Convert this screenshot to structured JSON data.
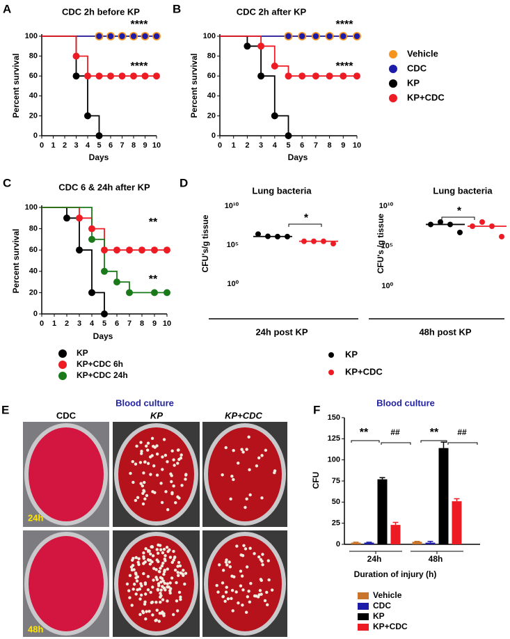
{
  "photos": {
    "panel": "E",
    "title": "Blood culture",
    "columns": [
      "CDC",
      "KP",
      "KP+CDC"
    ],
    "rows": [
      "24h",
      "48h"
    ]
  },
  "chart_data": [
    {
      "type": "step",
      "panel": "A",
      "title": "CDC 2h before KP",
      "xlabel": "Days",
      "ylabel": "Percent survival",
      "xlim": [
        0,
        10
      ],
      "xticks": [
        0,
        1,
        2,
        3,
        4,
        5,
        6,
        7,
        8,
        9,
        10
      ],
      "ylim": [
        0,
        100
      ],
      "yticks": [
        0,
        20,
        40,
        60,
        80,
        100
      ],
      "series": [
        {
          "name": "Vehicle",
          "color": "#f7941d",
          "x": [
            0,
            5,
            6,
            7,
            8,
            9,
            10
          ],
          "values": [
            100,
            100,
            100,
            100,
            100,
            100,
            100
          ]
        },
        {
          "name": "CDC",
          "color": "#1c1ca8",
          "x": [
            0,
            5,
            6,
            7,
            8,
            9,
            10
          ],
          "values": [
            100,
            100,
            100,
            100,
            100,
            100,
            100
          ]
        },
        {
          "name": "KP",
          "color": "#000000",
          "x": [
            0,
            3,
            4,
            5
          ],
          "values": [
            100,
            60,
            20,
            0
          ]
        },
        {
          "name": "KP+CDC",
          "color": "#ed1c24",
          "x": [
            0,
            3,
            4,
            5,
            6,
            7,
            8,
            9,
            10
          ],
          "values": [
            100,
            80,
            60,
            60,
            60,
            60,
            60,
            60,
            60
          ]
        }
      ],
      "annotations": [
        "****",
        "****"
      ]
    },
    {
      "type": "step",
      "panel": "B",
      "title": "CDC 2h after KP",
      "xlabel": "Days",
      "ylabel": "Percent survival",
      "xlim": [
        0,
        10
      ],
      "xticks": [
        0,
        1,
        2,
        3,
        4,
        5,
        6,
        7,
        8,
        9,
        10
      ],
      "ylim": [
        0,
        100
      ],
      "yticks": [
        0,
        20,
        40,
        60,
        80,
        100
      ],
      "series": [
        {
          "color": "#f7941d",
          "x": [
            0,
            5,
            6,
            7,
            8,
            9,
            10
          ],
          "values": [
            100,
            100,
            100,
            100,
            100,
            100,
            100
          ]
        },
        {
          "color": "#1c1ca8",
          "x": [
            0,
            5,
            6,
            7,
            8,
            9,
            10
          ],
          "values": [
            100,
            100,
            100,
            100,
            100,
            100,
            100
          ]
        },
        {
          "color": "#000000",
          "x": [
            0,
            2,
            3,
            4,
            5
          ],
          "values": [
            100,
            90,
            60,
            20,
            0
          ]
        },
        {
          "color": "#ed1c24",
          "x": [
            0,
            3,
            4,
            5,
            6,
            7,
            8,
            9,
            10
          ],
          "values": [
            100,
            90,
            70,
            60,
            60,
            60,
            60,
            60,
            60
          ]
        }
      ],
      "annotations": [
        "****",
        "****"
      ]
    },
    {
      "type": "step",
      "panel": "C",
      "title": "CDC 6 & 24h after KP",
      "xlabel": "Days",
      "ylabel": "Percent survival",
      "xlim": [
        0,
        10
      ],
      "xticks": [
        0,
        1,
        2,
        3,
        4,
        5,
        6,
        7,
        8,
        9,
        10
      ],
      "ylim": [
        0,
        100
      ],
      "yticks": [
        0,
        20,
        40,
        60,
        80,
        100
      ],
      "series": [
        {
          "name": " KP",
          "color": "#000000",
          "x": [
            0,
            2,
            3,
            4,
            5
          ],
          "values": [
            100,
            90,
            60,
            20,
            0
          ]
        },
        {
          "name": "KP+CDC 6h",
          "color": "#ed1c24",
          "x": [
            0,
            3,
            4,
            5,
            6,
            7,
            8,
            9,
            10
          ],
          "values": [
            100,
            90,
            80,
            60,
            60,
            60,
            60,
            60,
            60
          ]
        },
        {
          "name": "KP+CDC 24h",
          "color": "#1a7a1a",
          "x": [
            0,
            4,
            5,
            6,
            7,
            9,
            10
          ],
          "values": [
            100,
            70,
            40,
            30,
            20,
            20,
            20
          ]
        }
      ],
      "annotations": [
        "**",
        "**"
      ]
    },
    {
      "type": "scatter",
      "panel": "D",
      "title": "Lung bacteria",
      "ylabel": "CFU's/g tissue",
      "xlabel": "24h post KP",
      "yscale": "log",
      "ylim": [
        1,
        10000000000
      ],
      "yticks": [
        {
          "value": 1,
          "label": "10⁰"
        },
        {
          "value": 100000,
          "label": "10⁵"
        },
        {
          "value": 10000000000,
          "label": "10¹⁰"
        }
      ],
      "series": [
        {
          "name": "KP",
          "color": "#000000",
          "values": [
            2500000,
            1300000,
            1200000,
            1200000
          ],
          "median": 1250000
        },
        {
          "name": "KP+CDC",
          "color": "#ed1c24",
          "values": [
            300000,
            300000,
            300000,
            150000
          ],
          "median": 300000
        }
      ],
      "annotations": [
        "*"
      ]
    },
    {
      "type": "scatter",
      "title": "Lung bacteria",
      "ylabel": "CFU's /g tissue",
      "xlabel": "48h post KP",
      "yscale": "log",
      "ylim": [
        1,
        10000000000
      ],
      "yticks": [
        {
          "value": 1,
          "label": "10⁰"
        },
        {
          "value": 100000,
          "label": "10⁵"
        },
        {
          "value": 10000000000,
          "label": "10¹⁰"
        }
      ],
      "series": [
        {
          "color": "#000000",
          "values": [
            50000000,
            100000000,
            50000000,
            5000000
          ],
          "median": 50000000
        },
        {
          "color": "#ed1c24",
          "values": [
            30000000,
            100000000,
            30000000,
            1500000
          ],
          "median": 30000000
        }
      ],
      "annotations": [
        "*"
      ]
    },
    {
      "type": "bar",
      "panel": "F",
      "title": "Blood culture",
      "ylabel": "CFU",
      "xlabel": "Duration of injury (h)",
      "categories": [
        "24h",
        "48h"
      ],
      "ylim": [
        0,
        150
      ],
      "yticks": [
        0,
        25,
        50,
        75,
        100,
        125,
        150
      ],
      "series": [
        {
          "name": "Vehicle",
          "color": "#c8742a",
          "values": [
            2,
            3
          ],
          "errors": [
            0.5,
            0.5
          ]
        },
        {
          "name": "CDC",
          "color": "#1c1ca8",
          "values": [
            2,
            2
          ],
          "errors": [
            0.5,
            1.5
          ]
        },
        {
          "name": "KP",
          "color": "#000000",
          "values": [
            77,
            114
          ],
          "errors": [
            2,
            7
          ]
        },
        {
          "name": "KP+CDC",
          "color": "#ed1c24",
          "values": [
            23,
            51
          ],
          "errors": [
            3,
            3
          ]
        }
      ],
      "annotations": [
        "**",
        "##",
        "**",
        "##"
      ]
    }
  ]
}
